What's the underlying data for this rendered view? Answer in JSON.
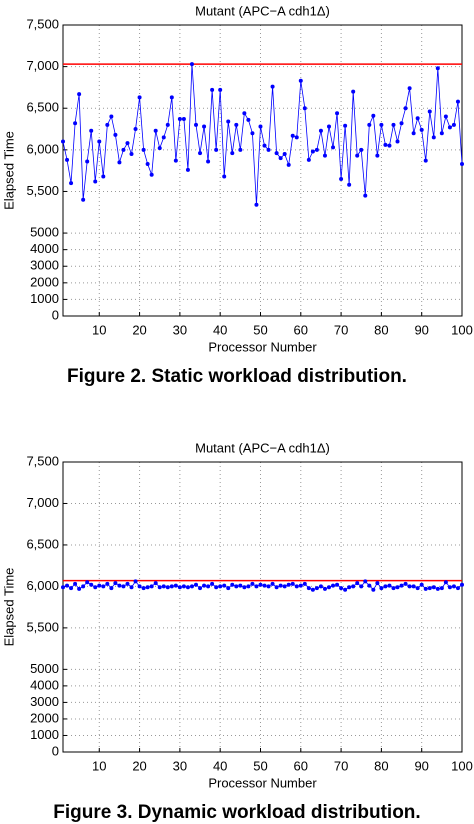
{
  "chart_data": [
    {
      "type": "line",
      "title": "Mutant (APC−A cdh1Δ)",
      "xlabel": "Processor Number",
      "ylabel": "Elapsed Time",
      "caption": "Figure 2. Static workload distribution.",
      "x": [
        1,
        2,
        3,
        4,
        5,
        6,
        7,
        8,
        9,
        10,
        11,
        12,
        13,
        14,
        15,
        16,
        17,
        18,
        19,
        20,
        21,
        22,
        23,
        24,
        25,
        26,
        27,
        28,
        29,
        30,
        31,
        32,
        33,
        34,
        35,
        36,
        37,
        38,
        39,
        40,
        41,
        42,
        43,
        44,
        45,
        46,
        47,
        48,
        49,
        50,
        51,
        52,
        53,
        54,
        55,
        56,
        57,
        58,
        59,
        60,
        61,
        62,
        63,
        64,
        65,
        66,
        67,
        68,
        69,
        70,
        71,
        72,
        73,
        74,
        75,
        76,
        77,
        78,
        79,
        80,
        81,
        82,
        83,
        84,
        85,
        86,
        87,
        88,
        89,
        90,
        91,
        92,
        93,
        94,
        95,
        96,
        97,
        98,
        99,
        100
      ],
      "series": [
        {
          "color": "#0000ff",
          "values": [
            6100,
            5880,
            5600,
            6320,
            6670,
            5400,
            5860,
            6230,
            5620,
            6100,
            5680,
            6300,
            6400,
            6180,
            5850,
            6000,
            6080,
            5950,
            6250,
            6630,
            6000,
            5830,
            5700,
            6230,
            6020,
            6150,
            6300,
            6630,
            5870,
            6370,
            6370,
            5760,
            7030,
            6300,
            5960,
            6280,
            5860,
            6720,
            6000,
            6720,
            5680,
            6340,
            5960,
            6300,
            6000,
            6440,
            6360,
            6200,
            5340,
            6280,
            6050,
            6000,
            6760,
            5960,
            5900,
            5950,
            5820,
            6170,
            6150,
            6830,
            6500,
            5880,
            5980,
            6000,
            6230,
            5930,
            6280,
            6030,
            6440,
            5650,
            6290,
            5580,
            6700,
            5930,
            6000,
            5450,
            6300,
            6410,
            5930,
            6300,
            6060,
            6050,
            6300,
            6100,
            6320,
            6500,
            6740,
            6200,
            6380,
            6240,
            5870,
            6460,
            6150,
            6980,
            6200,
            6400,
            6270,
            6300,
            6580,
            5830
          ]
        }
      ],
      "hline": {
        "value": 7030,
        "color": "#ff0000"
      },
      "xlim": [
        1,
        100
      ],
      "xticks": [
        10,
        20,
        30,
        40,
        50,
        60,
        70,
        80,
        90,
        100
      ],
      "ylim": [
        0,
        7500
      ],
      "yticks": [
        0,
        1000,
        2000,
        3000,
        4000,
        5000,
        {
          "value": 5500,
          "label": "5,500"
        },
        {
          "value": 6000,
          "label": "6,000"
        },
        {
          "value": 6500,
          "label": "6,500"
        },
        {
          "value": 7000,
          "label": "7,000"
        },
        {
          "value": 7500,
          "label": "7,500"
        }
      ],
      "grid": true
    },
    {
      "type": "line",
      "title": "Mutant (APC−A cdh1Δ)",
      "xlabel": "Processor Number",
      "ylabel": "Elapsed Time",
      "caption": "Figure 3. Dynamic workload distribution.",
      "x": [
        1,
        2,
        3,
        4,
        5,
        6,
        7,
        8,
        9,
        10,
        11,
        12,
        13,
        14,
        15,
        16,
        17,
        18,
        19,
        20,
        21,
        22,
        23,
        24,
        25,
        26,
        27,
        28,
        29,
        30,
        31,
        32,
        33,
        34,
        35,
        36,
        37,
        38,
        39,
        40,
        41,
        42,
        43,
        44,
        45,
        46,
        47,
        48,
        49,
        50,
        51,
        52,
        53,
        54,
        55,
        56,
        57,
        58,
        59,
        60,
        61,
        62,
        63,
        64,
        65,
        66,
        67,
        68,
        69,
        70,
        71,
        72,
        73,
        74,
        75,
        76,
        77,
        78,
        79,
        80,
        81,
        82,
        83,
        84,
        85,
        86,
        87,
        88,
        89,
        90,
        91,
        92,
        93,
        94,
        95,
        96,
        97,
        98,
        99,
        100
      ],
      "series": [
        {
          "color": "#0000ff",
          "values": [
            5990,
            6010,
            5980,
            6030,
            5970,
            6000,
            6050,
            6020,
            5990,
            6010,
            6000,
            6030,
            5980,
            6040,
            6010,
            6000,
            6030,
            5990,
            6060,
            6000,
            5980,
            5990,
            6000,
            6040,
            5990,
            6000,
            5990,
            6000,
            6010,
            5990,
            6000,
            5990,
            6000,
            6020,
            5980,
            6010,
            6000,
            6030,
            5990,
            6000,
            6010,
            5980,
            6020,
            6000,
            6010,
            5990,
            6000,
            6030,
            6000,
            6020,
            6010,
            6000,
            6030,
            5990,
            6010,
            6000,
            6020,
            6030,
            6000,
            6010,
            6030,
            5980,
            5960,
            5980,
            6000,
            5970,
            5990,
            6010,
            6020,
            5980,
            5960,
            5990,
            6000,
            6040,
            6000,
            6060,
            6010,
            5960,
            6040,
            5980,
            6000,
            6010,
            5980,
            5990,
            6010,
            6030,
            6000,
            6000,
            5980,
            6020,
            5970,
            5980,
            5990,
            5970,
            5980,
            6050,
            5990,
            6000,
            5980,
            6020
          ]
        }
      ],
      "hline": {
        "value": 6070,
        "color": "#ff0000"
      },
      "xlim": [
        1,
        100
      ],
      "xticks": [
        10,
        20,
        30,
        40,
        50,
        60,
        70,
        80,
        90,
        100
      ],
      "ylim": [
        0,
        7500
      ],
      "yticks": [
        0,
        1000,
        2000,
        3000,
        4000,
        5000,
        {
          "value": 5500,
          "label": "5,500"
        },
        {
          "value": 6000,
          "label": "6,000"
        },
        {
          "value": 6500,
          "label": "6,500"
        },
        {
          "value": 7000,
          "label": "7,000"
        },
        {
          "value": 7500,
          "label": "7,500"
        }
      ],
      "grid": true
    }
  ]
}
